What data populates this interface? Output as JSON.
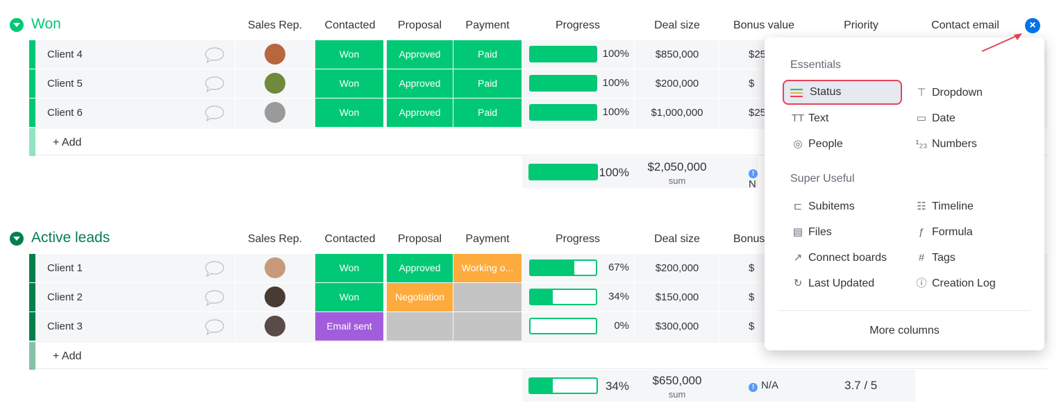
{
  "colors": {
    "won_green": "#00c875",
    "dark_green": "#037f4c",
    "approved_green": "#00c875",
    "working_orange": "#fdab3d",
    "email_purple": "#a25ddc",
    "empty_grey": "#c4c4c4",
    "accent_blue": "#0073ea",
    "highlight_red": "#e44258"
  },
  "columns": {
    "sales_rep": "Sales Rep.",
    "contacted": "Contacted",
    "proposal": "Proposal",
    "payment": "Payment",
    "progress": "Progress",
    "deal_size": "Deal size",
    "bonus_value": "Bonus value",
    "bonus_short": "Bonus",
    "priority": "Priority",
    "contact_email": "Contact email"
  },
  "won": {
    "title": "Won",
    "add_label": "+ Add",
    "rows": [
      {
        "name": "Client 4",
        "contacted": "Won",
        "proposal": "Approved",
        "payment": "Paid",
        "progress": 100,
        "progress_label": "100%",
        "deal": "$850,000",
        "bonus": "$25"
      },
      {
        "name": "Client 5",
        "contacted": "Won",
        "proposal": "Approved",
        "payment": "Paid",
        "progress": 100,
        "progress_label": "100%",
        "deal": "$200,000",
        "bonus": "$"
      },
      {
        "name": "Client 6",
        "contacted": "Won",
        "proposal": "Approved",
        "payment": "Paid",
        "progress": 100,
        "progress_label": "100%",
        "deal": "$1,000,000",
        "bonus": "$25"
      }
    ],
    "summary": {
      "progress": 100,
      "progress_label": "100%",
      "deal": "$2,050,000",
      "deal_sub": "sum",
      "bonus": "N"
    }
  },
  "active": {
    "title": "Active leads",
    "add_label": "+ Add",
    "rows": [
      {
        "name": "Client 1",
        "contacted": "Won",
        "proposal": "Approved",
        "payment": "Working o...",
        "progress": 67,
        "progress_label": "67%",
        "deal": "$200,000",
        "bonus": "$"
      },
      {
        "name": "Client 2",
        "contacted": "Won",
        "proposal": "Negotiation",
        "payment": "",
        "progress": 34,
        "progress_label": "34%",
        "deal": "$150,000",
        "bonus": "$"
      },
      {
        "name": "Client 3",
        "contacted": "Email sent",
        "proposal": "",
        "payment": "",
        "progress": 0,
        "progress_label": "0%",
        "deal": "$300,000",
        "bonus": "$"
      }
    ],
    "summary": {
      "progress": 34,
      "progress_label": "34%",
      "deal": "$650,000",
      "deal_sub": "sum",
      "bonus": "N/A",
      "rating": "3.7 / 5"
    }
  },
  "popup": {
    "essentials_title": "Essentials",
    "essentials": [
      {
        "label": "Status",
        "icon": "status-icon",
        "glyph": "☰",
        "selected": true
      },
      {
        "label": "Dropdown",
        "icon": "dropdown-icon",
        "glyph": "⊤"
      },
      {
        "label": "Text",
        "icon": "text-icon",
        "glyph": "TT"
      },
      {
        "label": "Date",
        "icon": "calendar-icon",
        "glyph": "▭"
      },
      {
        "label": "People",
        "icon": "people-icon",
        "glyph": "◎"
      },
      {
        "label": "Numbers",
        "icon": "numbers-icon",
        "glyph": "¹₂₃"
      }
    ],
    "useful_title": "Super Useful",
    "useful": [
      {
        "label": "Subitems",
        "icon": "subitems-icon",
        "glyph": "⊏"
      },
      {
        "label": "Timeline",
        "icon": "timeline-icon",
        "glyph": "☷"
      },
      {
        "label": "Files",
        "icon": "files-icon",
        "glyph": "▤"
      },
      {
        "label": "Formula",
        "icon": "formula-icon",
        "glyph": "ƒ"
      },
      {
        "label": "Connect boards",
        "icon": "connect-boards-icon",
        "glyph": "↗"
      },
      {
        "label": "Tags",
        "icon": "tags-icon",
        "glyph": "#"
      },
      {
        "label": "Last Updated",
        "icon": "last-updated-icon",
        "glyph": "↻"
      },
      {
        "label": "Creation Log",
        "icon": "info-icon",
        "glyph": "ⓘ"
      }
    ],
    "more_label": "More columns"
  },
  "close_glyph": "×"
}
